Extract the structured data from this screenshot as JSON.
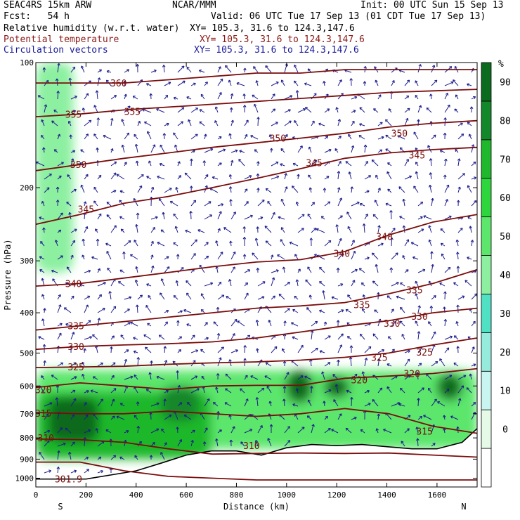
{
  "header": {
    "model": "SEAC4RS 15km ARW",
    "center": "NCAR/MMM",
    "init": "Init: 00 UTC Sun 15 Sep 13",
    "fcst": "Fcst:   54 h",
    "valid": "Valid: 06 UTC Tue 17 Sep 13 (01 CDT Tue 17 Sep 13)",
    "field1": "Relative humidity (w.r.t. water)",
    "field1_xy": "XY= 105.3, 31.6 to 124.3,147.6",
    "field2": "Potential temperature",
    "field2_xy": "XY= 105.3, 31.6 to 124.3,147.6",
    "field3": "Circulation vectors",
    "field3_xy": "XY= 105.3, 31.6 to 124.3,147.6"
  },
  "colors": {
    "field1": "#000000",
    "field2": "#8b1a1a",
    "field3": "#1a1a9c",
    "contour": "#7a0c0c",
    "vector": "#1c1c8c",
    "terrain": "#000000"
  },
  "chart_data": {
    "type": "heatmap",
    "title": "Relative humidity (w.r.t. water)",
    "xlabel": "Distance (km)",
    "ylabel": "Pressure (hPa)",
    "xlim": [
      0,
      1760
    ],
    "ylim": [
      1050,
      100
    ],
    "y_scale": "log",
    "grid": false,
    "x_ticks": [
      0,
      200,
      400,
      600,
      800,
      1000,
      1200,
      1400,
      1600
    ],
    "x_tick_labels": [
      "0",
      "200",
      "400",
      "600",
      "800",
      "1000",
      "1200",
      "1400",
      "1600"
    ],
    "y_ticks": [
      100,
      200,
      300,
      400,
      500,
      600,
      700,
      800,
      900,
      1000
    ],
    "y_tick_labels": [
      "100",
      "200",
      "300",
      "400",
      "500",
      "600",
      "700",
      "800",
      "900",
      "1000"
    ],
    "x_end_labels": {
      "left": "S",
      "right": "N"
    },
    "colorbar": {
      "unit_label": "%",
      "levels": [
        0,
        10,
        20,
        30,
        40,
        50,
        60,
        70,
        80,
        90
      ],
      "level_labels": [
        "0",
        "10",
        "20",
        "30",
        "40",
        "50",
        "60",
        "70",
        "80",
        "90"
      ],
      "colors": [
        "#ffffff",
        "#e6fae8",
        "#c8f5ef",
        "#96ecdc",
        "#50e0c4",
        "#8cf0a0",
        "#5ce66c",
        "#2ed63e",
        "#1fb82c",
        "#13882a",
        "#0b6b1e"
      ]
    },
    "theta_contours": [
      {
        "label": "360",
        "p": [
          112,
          112,
          112,
          110,
          108,
          106,
          106,
          104,
          104,
          104,
          104
        ],
        "label_points": [
          [
            330,
            112
          ]
        ]
      },
      {
        "label": "355",
        "p": [
          135,
          133,
          130,
          128,
          126,
          124,
          122,
          120,
          118,
          117,
          116
        ],
        "label_points": [
          [
            150,
            133
          ],
          [
            385,
            131
          ]
        ]
      },
      {
        "label": "350",
        "p": [
          182,
          176,
          170,
          165,
          160,
          156,
          152,
          148,
          143,
          140,
          138
        ],
        "label_points": [
          [
            170,
            176
          ],
          [
            965,
            152
          ],
          [
            1450,
            148
          ]
        ]
      },
      {
        "label": "345",
        "p": [
          245,
          232,
          218,
          210,
          200,
          190,
          180,
          170,
          165,
          162,
          160
        ],
        "label_points": [
          [
            200,
            225
          ],
          [
            1110,
            174
          ],
          [
            1520,
            167
          ]
        ]
      },
      {
        "label": "340",
        "p": [
          345,
          340,
          330,
          320,
          310,
          302,
          298,
          285,
          260,
          242,
          232
        ],
        "label_points": [
          [
            150,
            340
          ],
          [
            1220,
            288
          ],
          [
            1390,
            262
          ]
        ]
      },
      {
        "label": "335",
        "p": [
          440,
          430,
          420,
          410,
          400,
          390,
          385,
          378,
          360,
          340,
          315
        ],
        "label_points": [
          [
            160,
            430
          ],
          [
            1300,
            382
          ],
          [
            1510,
            352
          ]
        ]
      },
      {
        "label": "330",
        "p": [
          490,
          482,
          478,
          475,
          470,
          460,
          445,
          430,
          418,
          400,
          390
        ],
        "label_points": [
          [
            160,
            482
          ],
          [
            1420,
            424
          ],
          [
            1530,
            408
          ]
        ]
      },
      {
        "label": "325",
        "p": [
          542,
          540,
          538,
          532,
          528,
          525,
          520,
          512,
          500,
          478,
          460
        ],
        "label_points": [
          [
            160,
            540
          ],
          [
            1370,
            512
          ],
          [
            1550,
            497
          ]
        ]
      },
      {
        "label": "320",
        "p": [
          605,
          590,
          600,
          612,
          600,
          598,
          598,
          575,
          568,
          560,
          545
        ],
        "label_points": [
          [
            30,
            612
          ],
          [
            1290,
            580
          ],
          [
            1500,
            560
          ]
        ]
      },
      {
        "label": "315",
        "p": [
          695,
          700,
          700,
          690,
          700,
          710,
          700,
          680,
          700,
          750,
          780
        ],
        "label_points": [
          [
            30,
            698
          ],
          [
            1550,
            770
          ]
        ]
      },
      {
        "label": "310",
        "p": [
          805,
          808,
          820,
          850,
          875,
          872,
          870,
          872,
          870,
          880,
          890
        ],
        "label_points": [
          [
            40,
            800
          ],
          [
            860,
            835
          ]
        ]
      },
      {
        "label": "301.9",
        "p": [
          915,
          915,
          960,
          990,
          1000,
          1010,
          1010,
          1010,
          1010,
          1010,
          1010
        ],
        "label_points": [
          [
            130,
            1005
          ]
        ]
      }
    ],
    "terrain_surface": {
      "distance_km": [
        0,
        100,
        200,
        400,
        500,
        600,
        700,
        800,
        900,
        1000,
        1100,
        1200,
        1300,
        1400,
        1500,
        1600,
        1700,
        1760
      ],
      "pressure_hpa": [
        1005,
        1005,
        1005,
        960,
        920,
        880,
        860,
        860,
        880,
        845,
        830,
        835,
        830,
        840,
        850,
        850,
        820,
        760
      ]
    },
    "rh_regions_percent": [
      {
        "x": [
          0,
          700
        ],
        "p": [
          620,
          900
        ],
        "rh": 70
      },
      {
        "x": [
          50,
          250
        ],
        "p": [
          640,
          820
        ],
        "rh": 90
      },
      {
        "x": [
          500,
          650
        ],
        "p": [
          600,
          730
        ],
        "rh": 80
      },
      {
        "x": [
          1000,
          1100
        ],
        "p": [
          550,
          660
        ],
        "rh": 90
      },
      {
        "x": [
          1150,
          1250
        ],
        "p": [
          570,
          640
        ],
        "rh": 90
      },
      {
        "x": [
          1600,
          1700
        ],
        "p": [
          560,
          650
        ],
        "rh": 90
      },
      {
        "x": [
          0,
          1760
        ],
        "p": [
          550,
          850
        ],
        "rh": 50
      },
      {
        "x": [
          0,
          150
        ],
        "p": [
          100,
          320
        ],
        "rh": 40
      }
    ]
  }
}
